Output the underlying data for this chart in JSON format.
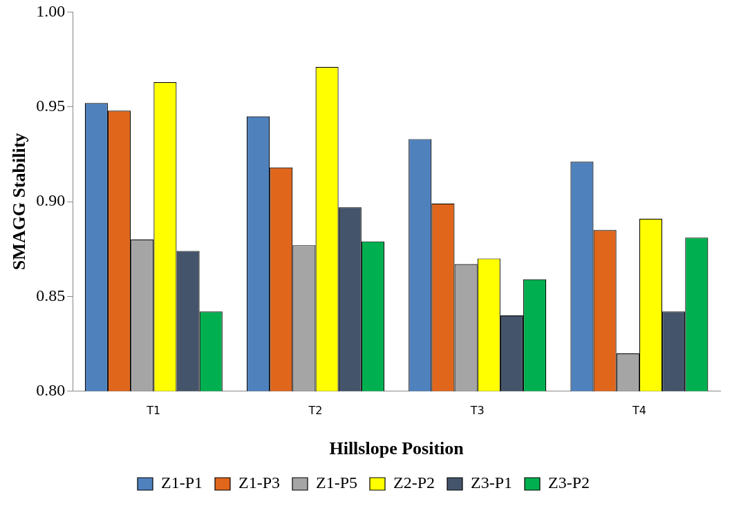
{
  "chart_data": {
    "type": "bar",
    "xlabel": "Hillslope Position",
    "ylabel": "SMAGG Stability",
    "categories": [
      "T1",
      "T2",
      "T3",
      "T4"
    ],
    "series": [
      {
        "name": "Z1-P1",
        "color": "#4f81bd",
        "values": [
          0.952,
          0.945,
          0.933,
          0.921
        ]
      },
      {
        "name": "Z1-P3",
        "color": "#e0661c",
        "values": [
          0.948,
          0.918,
          0.899,
          0.885
        ]
      },
      {
        "name": "Z1-P5",
        "color": "#a5a5a5",
        "values": [
          0.88,
          0.877,
          0.867,
          0.82
        ]
      },
      {
        "name": "Z2-P2",
        "color": "#ffff00",
        "values": [
          0.963,
          0.971,
          0.87,
          0.891
        ]
      },
      {
        "name": "Z3-P1",
        "color": "#44546a",
        "values": [
          0.874,
          0.897,
          0.84,
          0.842
        ]
      },
      {
        "name": "Z3-P2",
        "color": "#00b050",
        "values": [
          0.842,
          0.879,
          0.859,
          0.881
        ]
      }
    ],
    "ylim": [
      0.8,
      1.0
    ],
    "yticks": [
      {
        "value": 0.8,
        "label": "0.80"
      },
      {
        "value": 0.85,
        "label": "0.85"
      },
      {
        "value": 0.9,
        "label": "0.90"
      },
      {
        "value": 0.95,
        "label": "0.95"
      },
      {
        "value": 1.0,
        "label": "1.00"
      }
    ],
    "grid": false,
    "legend": "bottom"
  }
}
